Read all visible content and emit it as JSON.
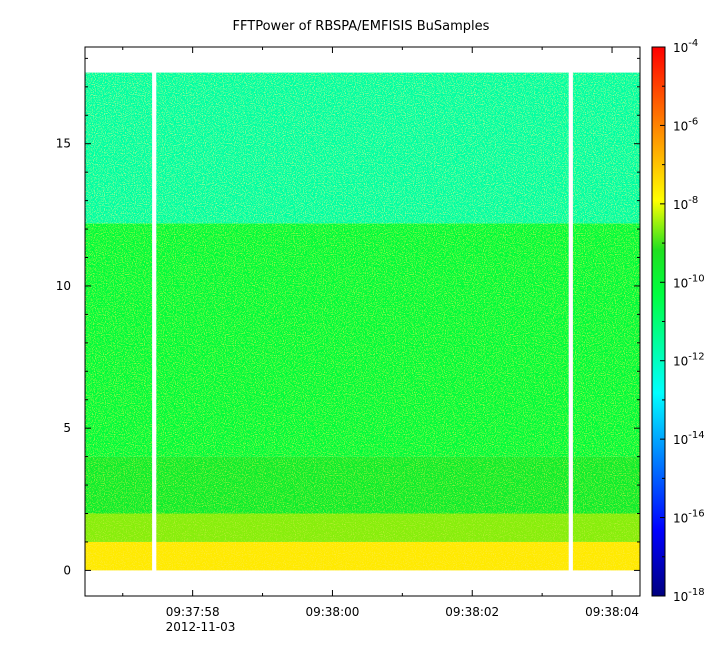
{
  "chart_data": {
    "type": "heatmap",
    "title": "FFTPower of RBSPA/EMFISIS  BuSamples",
    "xlabel": "",
    "ylabel": "",
    "x_tick_labels": [
      {
        "time": "09:37:58",
        "sub": "2012-11-03"
      },
      {
        "time": "09:38:00",
        "sub": ""
      },
      {
        "time": "09:38:02",
        "sub": ""
      },
      {
        "time": "09:38:04",
        "sub": ""
      }
    ],
    "x_range_seconds": [
      -1.54,
      6.4
    ],
    "x_minor_step_seconds": 1,
    "x_major_step_seconds": 2,
    "y_ticks": [
      0,
      5,
      10,
      15
    ],
    "y_range": [
      -0.9,
      18.4
    ],
    "data_y_range": [
      0,
      17.5
    ],
    "gaps_seconds": [
      [
        -0.58,
        -0.52
      ],
      [
        5.38,
        5.44
      ]
    ],
    "bands": [
      {
        "y_from": 0,
        "y_to": 1.0,
        "log_power": -7.6
      },
      {
        "y_from": 1.0,
        "y_to": 2.0,
        "log_power": -8.6
      },
      {
        "y_from": 2.0,
        "y_to": 4.0,
        "log_power": -9.7
      },
      {
        "y_from": 4.0,
        "y_to": 12.2,
        "log_power": -10.2
      },
      {
        "y_from": 12.2,
        "y_to": 17.5,
        "log_power": -11.6
      }
    ],
    "colorbar": {
      "scale": "log",
      "range": [
        1e-18,
        0.0001
      ],
      "tick_labels": [
        {
          "base": "10",
          "exp": "-4"
        },
        {
          "base": "10",
          "exp": "-6"
        },
        {
          "base": "10",
          "exp": "-8"
        },
        {
          "base": "10",
          "exp": "-10"
        },
        {
          "base": "10",
          "exp": "-12"
        },
        {
          "base": "10",
          "exp": "-14"
        },
        {
          "base": "10",
          "exp": "-16"
        },
        {
          "base": "10",
          "exp": "-18"
        }
      ],
      "tick_exponents": [
        -4,
        -6,
        -8,
        -10,
        -12,
        -14,
        -16,
        -18
      ],
      "colors": [
        "#00007f",
        "#0000ff",
        "#0080ff",
        "#00ffff",
        "#00ff40",
        "#20e020",
        "#ffff00",
        "#ff8000",
        "#ff0000"
      ]
    },
    "grid": false
  }
}
